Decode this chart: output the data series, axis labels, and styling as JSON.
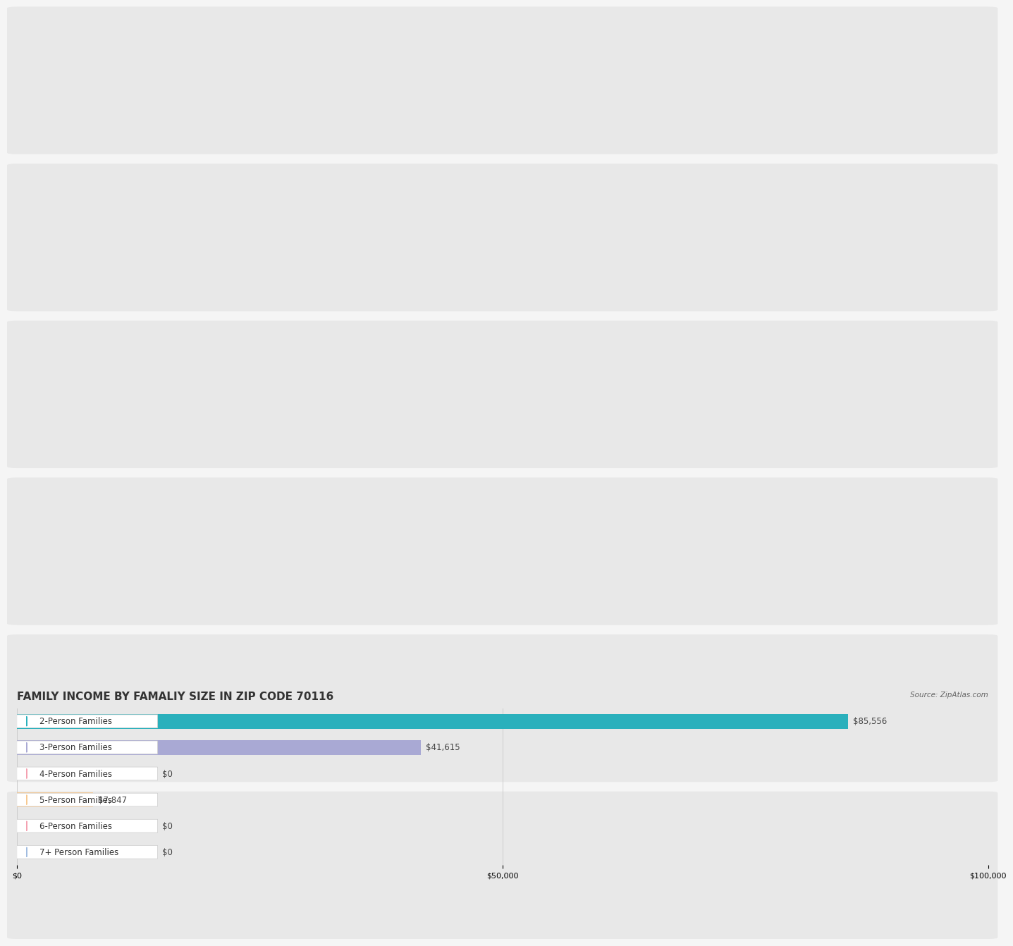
{
  "title": "FAMILY INCOME BY FAMALIY SIZE IN ZIP CODE 70116",
  "source": "Source: ZipAtlas.com",
  "categories": [
    "2-Person Families",
    "3-Person Families",
    "4-Person Families",
    "5-Person Families",
    "6-Person Families",
    "7+ Person Families"
  ],
  "values": [
    85556,
    41615,
    0,
    7847,
    0,
    0
  ],
  "bar_colors": [
    "#2ab0bc",
    "#a9a9d4",
    "#f4a0b0",
    "#f7c990",
    "#f4a0b0",
    "#a0bce0"
  ],
  "label_colors": [
    "#ffffff",
    "#555555",
    "#555555",
    "#555555",
    "#555555",
    "#555555"
  ],
  "value_labels": [
    "$85,556",
    "$41,615",
    "$0",
    "$7,847",
    "$0",
    "$0"
  ],
  "xlim": [
    0,
    100000
  ],
  "xticks": [
    0,
    50000,
    100000
  ],
  "xtick_labels": [
    "$0",
    "$50,000",
    "$100,000"
  ],
  "background_color": "#f5f5f5",
  "bar_background_color": "#e8e8e8",
  "title_fontsize": 11,
  "label_fontsize": 8.5,
  "value_fontsize": 8.5,
  "bar_height": 0.62,
  "label_box_color": "#ffffff",
  "row_bg_colors": [
    "#efefef",
    "#efefef",
    "#efefef",
    "#efefef",
    "#efefef",
    "#efefef"
  ]
}
